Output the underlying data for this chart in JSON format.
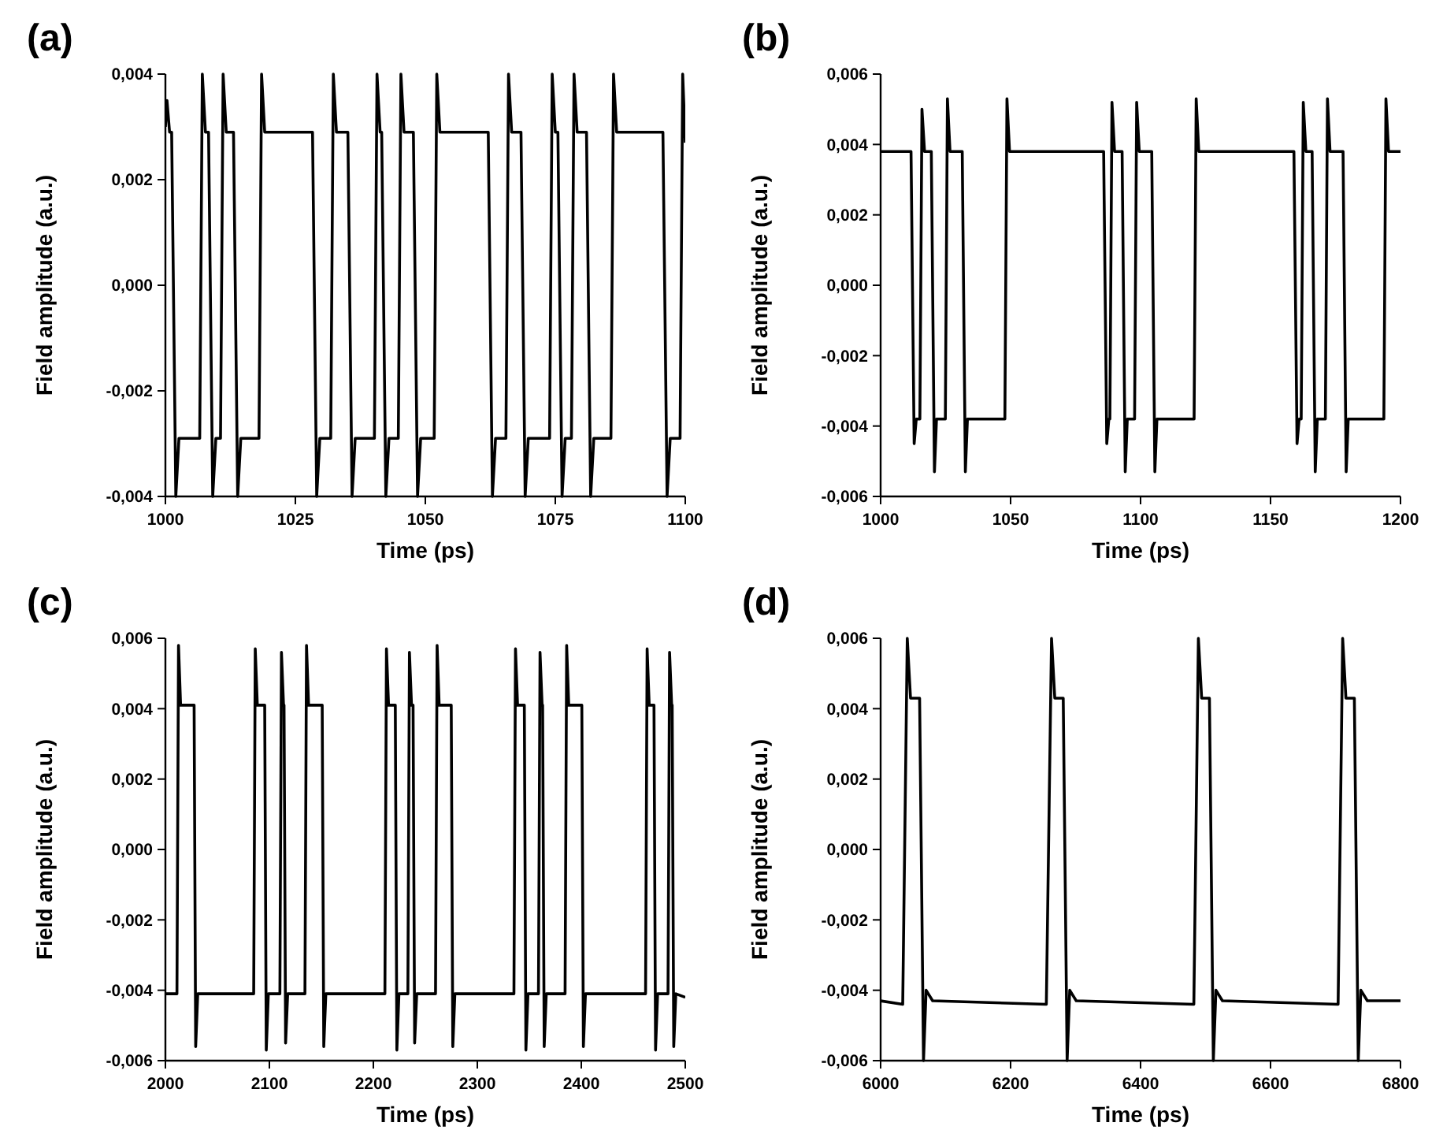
{
  "chart_data": [
    {
      "type": "line",
      "title": "(a)",
      "xlabel": "Time (ps)",
      "ylabel": "Field amplitude (a.u.)",
      "xlim": [
        1000,
        1100
      ],
      "ylim": [
        -0.004,
        0.004
      ],
      "xticks": [
        1000,
        1025,
        1050,
        1075,
        1100
      ],
      "yticks": [
        {
          "value": -0.004,
          "label": "-0,004"
        },
        {
          "value": -0.002,
          "label": "-0,002"
        },
        {
          "value": 0,
          "label": "0,000"
        },
        {
          "value": 0.002,
          "label": "0,002"
        },
        {
          "value": 0.004,
          "label": "0,004"
        }
      ],
      "series": [
        {
          "color": "#000000",
          "x": [
            1000,
            1000.3,
            1000.8,
            1001.2,
            1002.0,
            1002.6,
            1006.6,
            1007.1,
            1007.7,
            1008.3,
            1009.1,
            1009.7,
            1010.6,
            1011.1,
            1011.7,
            1013.1,
            1013.9,
            1014.5,
            1018.0,
            1018.5,
            1019.1,
            1028.3,
            1029.1,
            1029.7,
            1031.8,
            1032.3,
            1032.9,
            1035.1,
            1035.9,
            1036.5,
            1040.2,
            1040.7,
            1041.3,
            1041.6,
            1042.4,
            1043.0,
            1044.8,
            1045.3,
            1045.9,
            1047.7,
            1048.5,
            1049.1,
            1051.7,
            1052.2,
            1052.8,
            1062.1,
            1062.9,
            1063.5,
            1065.5,
            1066.0,
            1066.6,
            1068.4,
            1069.2,
            1069.8,
            1073.9,
            1074.4,
            1075.0,
            1075.5,
            1076.3,
            1076.9,
            1078.1,
            1078.6,
            1079.2,
            1081.0,
            1081.8,
            1082.4,
            1085.7,
            1086.2,
            1086.8,
            1095.7,
            1096.5,
            1097.1,
            1099.0,
            1099.5,
            1100
          ],
          "values": [
            0.003,
            0.0035,
            0.0029,
            0.0029,
            -0.004,
            -0.0029,
            -0.0029,
            0.004,
            0.0029,
            0.0029,
            -0.004,
            -0.0029,
            -0.0029,
            0.004,
            0.0029,
            0.0029,
            -0.004,
            -0.0029,
            -0.0029,
            0.004,
            0.0029,
            0.0029,
            -0.004,
            -0.0029,
            -0.0029,
            0.004,
            0.0029,
            0.0029,
            -0.004,
            -0.0029,
            -0.0029,
            0.004,
            0.0029,
            0.0029,
            -0.004,
            -0.0029,
            -0.0029,
            0.004,
            0.0029,
            0.0029,
            -0.004,
            -0.0029,
            -0.0029,
            0.004,
            0.0029,
            0.0029,
            -0.004,
            -0.0029,
            -0.0029,
            0.004,
            0.0029,
            0.0029,
            -0.004,
            -0.0029,
            -0.0029,
            0.004,
            0.0029,
            0.0029,
            -0.004,
            -0.0029,
            -0.0029,
            0.004,
            0.0029,
            0.0029,
            -0.004,
            -0.0029,
            -0.0029,
            0.004,
            0.0029,
            0.0029,
            -0.004,
            -0.0029,
            -0.0029,
            0.004,
            0.0027
          ]
        }
      ]
    },
    {
      "type": "line",
      "title": "(b)",
      "xlabel": "Time (ps)",
      "ylabel": "Field amplitude (a.u.)",
      "xlim": [
        1000,
        1200
      ],
      "ylim": [
        -0.006,
        0.006
      ],
      "xticks": [
        1000,
        1050,
        1100,
        1150,
        1200
      ],
      "yticks": [
        {
          "value": -0.006,
          "label": "-0,006"
        },
        {
          "value": -0.004,
          "label": "-0,004"
        },
        {
          "value": -0.002,
          "label": "-0,002"
        },
        {
          "value": 0,
          "label": "0,000"
        },
        {
          "value": 0.002,
          "label": "0,002"
        },
        {
          "value": 0.004,
          "label": "0,004"
        },
        {
          "value": 0.006,
          "label": "0,006"
        }
      ],
      "series": [
        {
          "color": "#000000",
          "x": [
            1000,
            1011.7,
            1012.9,
            1013.7,
            1015.1,
            1015.9,
            1016.9,
            1019.5,
            1020.7,
            1021.5,
            1024.9,
            1025.7,
            1026.7,
            1031.4,
            1032.6,
            1033.4,
            1047.8,
            1048.6,
            1049.6,
            1085.8,
            1087.0,
            1087.8,
            1088.2,
            1089.0,
            1090.0,
            1092.9,
            1094.1,
            1094.9,
            1097.7,
            1098.5,
            1099.5,
            1104.3,
            1105.5,
            1106.3,
            1120.6,
            1121.4,
            1122.4,
            1159.0,
            1160.2,
            1161.0,
            1161.8,
            1162.6,
            1163.6,
            1166.0,
            1167.2,
            1168.0,
            1171.1,
            1171.9,
            1172.9,
            1177.9,
            1179.1,
            1179.9,
            1193.6,
            1194.4,
            1195.4,
            1200
          ],
          "values": [
            0.0038,
            0.0038,
            -0.0045,
            -0.0038,
            -0.0038,
            0.005,
            0.0038,
            0.0038,
            -0.0053,
            -0.0038,
            -0.0038,
            0.0053,
            0.0038,
            0.0038,
            -0.0053,
            -0.0038,
            -0.0038,
            0.0053,
            0.0038,
            0.0038,
            -0.0045,
            -0.0038,
            -0.0038,
            0.0052,
            0.0038,
            0.0038,
            -0.0053,
            -0.0038,
            -0.0038,
            0.0052,
            0.0038,
            0.0038,
            -0.0053,
            -0.0038,
            -0.0038,
            0.0053,
            0.0038,
            0.0038,
            -0.0045,
            -0.0038,
            -0.0038,
            0.0052,
            0.0038,
            0.0038,
            -0.0053,
            -0.0038,
            -0.0038,
            0.0053,
            0.0038,
            0.0038,
            -0.0053,
            -0.0038,
            -0.0038,
            0.0053,
            0.0038,
            0.0038
          ]
        }
      ]
    },
    {
      "type": "line",
      "title": "(c)",
      "xlabel": "Time (ps)",
      "ylabel": "Field amplitude (a.u.)",
      "xlim": [
        2000,
        2500
      ],
      "ylim": [
        -0.006,
        0.006
      ],
      "xticks": [
        2000,
        2100,
        2200,
        2300,
        2400,
        2500
      ],
      "yticks": [
        {
          "value": -0.006,
          "label": "-0,006"
        },
        {
          "value": -0.004,
          "label": "-0,004"
        },
        {
          "value": -0.002,
          "label": "-0,002"
        },
        {
          "value": 0,
          "label": "0,000"
        },
        {
          "value": 0.002,
          "label": "0,002"
        },
        {
          "value": 0.004,
          "label": "0,004"
        },
        {
          "value": 0.006,
          "label": "0,006"
        }
      ],
      "series": [
        {
          "color": "#000000",
          "x": [
            2000,
            2011.1,
            2012.6,
            2014.6,
            2027.6,
            2029.1,
            2031.1,
            2084.9,
            2086.4,
            2088.4,
            2095.5,
            2097.0,
            2099.0,
            2110.1,
            2111.6,
            2113.6,
            2114.1,
            2115.6,
            2117.6,
            2134.2,
            2135.7,
            2137.7,
            2150.8,
            2152.3,
            2154.3,
            2211.1,
            2212.6,
            2214.6,
            2221.1,
            2222.6,
            2224.6,
            2233.2,
            2234.7,
            2236.7,
            2238.2,
            2239.7,
            2241.7,
            2259.8,
            2261.3,
            2263.3,
            2274.9,
            2276.4,
            2278.4,
            2335.2,
            2336.7,
            2338.7,
            2345.2,
            2346.7,
            2348.7,
            2358.8,
            2360.3,
            2362.3,
            2362.8,
            2364.3,
            2366.3,
            2384.4,
            2385.9,
            2387.9,
            2400.5,
            2402.0,
            2404.0,
            2461.8,
            2463.3,
            2465.3,
            2469.9,
            2471.4,
            2473.4,
            2483.4,
            2484.9,
            2486.9,
            2487.4,
            2488.9,
            2490.9,
            2500
          ],
          "values": [
            -0.0041,
            -0.0041,
            0.0058,
            0.0041,
            0.0041,
            -0.0056,
            -0.0041,
            -0.0041,
            0.0057,
            0.0041,
            0.0041,
            -0.0057,
            -0.0041,
            -0.0041,
            0.0056,
            0.0041,
            0.0041,
            -0.0055,
            -0.0041,
            -0.0041,
            0.0058,
            0.0041,
            0.0041,
            -0.0056,
            -0.0041,
            -0.0041,
            0.0057,
            0.0041,
            0.0041,
            -0.0057,
            -0.0041,
            -0.0041,
            0.0056,
            0.0041,
            0.0041,
            -0.0055,
            -0.0041,
            -0.0041,
            0.0058,
            0.0041,
            0.0041,
            -0.0056,
            -0.0041,
            -0.0041,
            0.0057,
            0.0041,
            0.0041,
            -0.0057,
            -0.0041,
            -0.0041,
            0.0056,
            0.0041,
            0.0041,
            -0.0056,
            -0.0041,
            -0.0041,
            0.0058,
            0.0041,
            0.0041,
            -0.0056,
            -0.0041,
            -0.0041,
            0.0057,
            0.0041,
            0.0041,
            -0.0057,
            -0.0041,
            -0.0041,
            0.0056,
            0.0041,
            0.0041,
            -0.0056,
            -0.0041,
            -0.0042
          ]
        }
      ]
    },
    {
      "type": "line",
      "title": "(d)",
      "xlabel": "Time (ps)",
      "ylabel": "Field amplitude (a.u.)",
      "xlim": [
        6000,
        6800
      ],
      "ylim": [
        -0.006,
        0.006
      ],
      "xticks": [
        6000,
        6200,
        6400,
        6600,
        6800
      ],
      "yticks": [
        {
          "value": -0.006,
          "label": "-0,006"
        },
        {
          "value": -0.004,
          "label": "-0,004"
        },
        {
          "value": -0.002,
          "label": "-0,002"
        },
        {
          "value": 0,
          "label": "0,000"
        },
        {
          "value": 0.002,
          "label": "0,002"
        },
        {
          "value": 0.004,
          "label": "0,004"
        },
        {
          "value": 0.006,
          "label": "0,006"
        }
      ],
      "series": [
        {
          "color": "#000000",
          "x": [
            6000,
            6034,
            6041,
            6046,
            6060,
            6066,
            6070,
            6080,
            6255,
            6263,
            6268,
            6281,
            6287,
            6291,
            6301,
            6482,
            6489,
            6494,
            6506,
            6512,
            6516,
            6526,
            6704,
            6711,
            6716,
            6729,
            6735,
            6739,
            6749,
            6800
          ],
          "values": [
            -0.0043,
            -0.0044,
            0.006,
            0.0043,
            0.0043,
            -0.006,
            -0.004,
            -0.0043,
            -0.0044,
            0.006,
            0.0043,
            0.0043,
            -0.006,
            -0.004,
            -0.0043,
            -0.0044,
            0.006,
            0.0043,
            0.0043,
            -0.006,
            -0.004,
            -0.0043,
            -0.0044,
            0.006,
            0.0043,
            0.0043,
            -0.006,
            -0.004,
            -0.0043,
            -0.0043
          ]
        }
      ]
    }
  ]
}
